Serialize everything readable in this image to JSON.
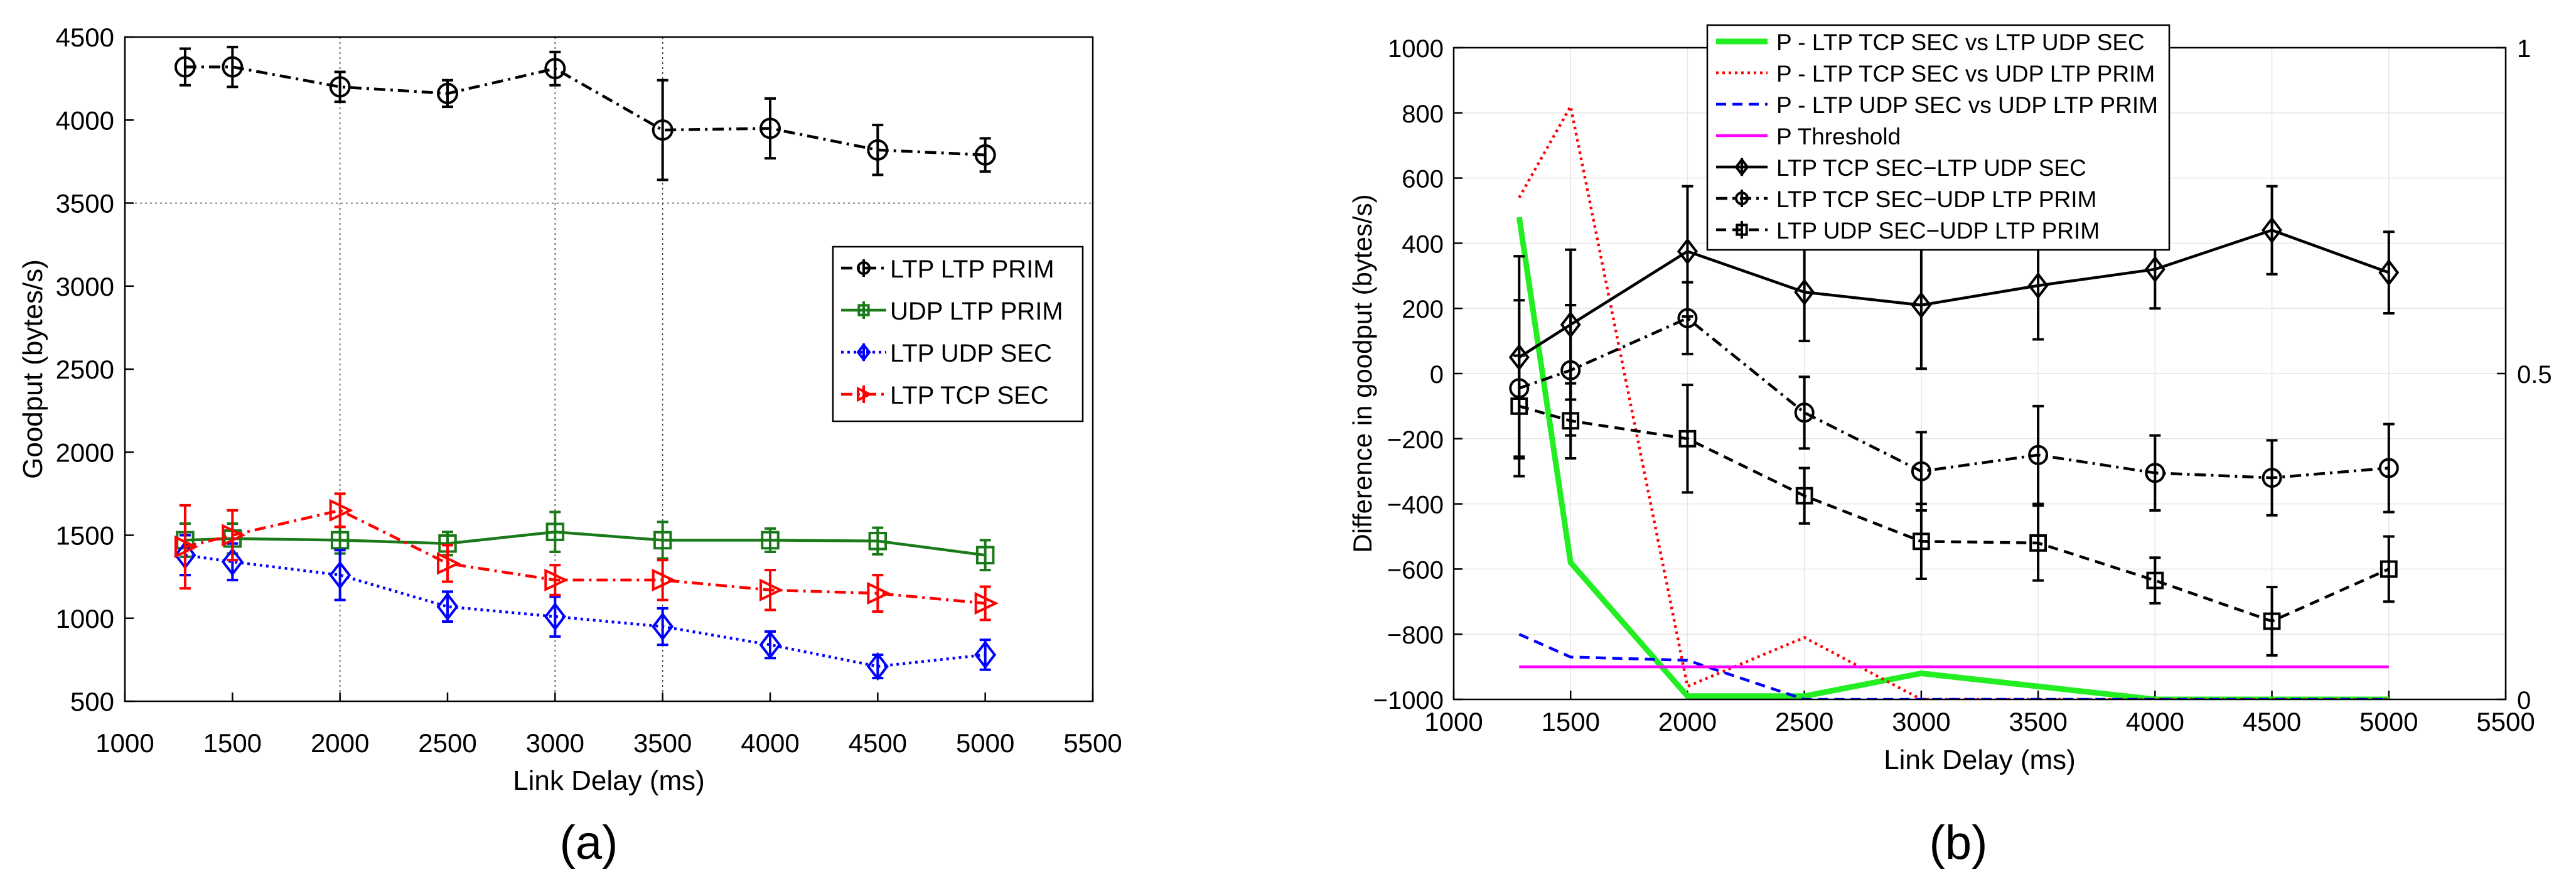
{
  "chart_data": [
    {
      "type": "line",
      "panel_label": "(a)",
      "title": "",
      "xlabel": "Link Delay (ms)",
      "ylabel": "Goodput (bytes/s)",
      "xlim": [
        1000,
        5500
      ],
      "ylim": [
        500,
        4500
      ],
      "xticks": [
        "1000",
        "1500",
        "2000",
        "2500",
        "3000",
        "3500",
        "4000",
        "4500",
        "5000",
        "5500"
      ],
      "yticks": [
        "500",
        "1000",
        "1500",
        "2000",
        "2500",
        "3000",
        "3500",
        "4000",
        "4500"
      ],
      "grid": "dotted at x=2000,3000,3500 and y=3500",
      "legend_position": "right",
      "x": [
        1280,
        1500,
        2000,
        2500,
        3000,
        3500,
        4000,
        4500,
        5000
      ],
      "series": [
        {
          "name": "LTP LTP PRIM",
          "color": "#000000",
          "dash": "dashdot",
          "marker": "circle",
          "values": [
            4320,
            4320,
            4200,
            4160,
            4310,
            3940,
            3950,
            3820,
            3790
          ],
          "errors": [
            110,
            120,
            90,
            80,
            100,
            300,
            180,
            150,
            100
          ]
        },
        {
          "name": "UDP LTP PRIM",
          "color": "#1a7a1a",
          "dash": "solid",
          "marker": "square",
          "values": [
            1470,
            1480,
            1470,
            1450,
            1520,
            1470,
            1470,
            1465,
            1380
          ],
          "errors": [
            100,
            90,
            80,
            70,
            120,
            110,
            70,
            80,
            90
          ]
        },
        {
          "name": "LTP UDP SEC",
          "color": "#0000ff",
          "dash": "dotted",
          "marker": "diamond",
          "values": [
            1380,
            1340,
            1260,
            1070,
            1010,
            950,
            840,
            710,
            780
          ],
          "errors": [
            120,
            110,
            150,
            90,
            120,
            110,
            80,
            70,
            90
          ]
        },
        {
          "name": "LTP TCP SEC",
          "color": "#ff0000",
          "dash": "dashdot",
          "marker": "triangle-right",
          "values": [
            1430,
            1500,
            1650,
            1330,
            1230,
            1230,
            1170,
            1150,
            1090
          ],
          "errors": [
            250,
            150,
            100,
            110,
            90,
            120,
            120,
            110,
            100
          ]
        }
      ]
    },
    {
      "type": "line",
      "panel_label": "(b)",
      "title": "",
      "xlabel": "Link Delay (ms)",
      "ylabel": "Difference in goodput (bytes/s)",
      "y2label": "",
      "xlim": [
        1000,
        5500
      ],
      "ylim": [
        -1000,
        1000
      ],
      "y2lim": [
        0,
        1
      ],
      "xticks": [
        "1000",
        "1500",
        "2000",
        "2500",
        "3000",
        "3500",
        "4000",
        "4500",
        "5000",
        "5500"
      ],
      "yticks": [
        "-1000",
        "-800",
        "-600",
        "-400",
        "-200",
        "0",
        "200",
        "400",
        "600",
        "800",
        "1000"
      ],
      "y2ticks": [
        "0",
        "0.5",
        "1"
      ],
      "grid": "light grid",
      "legend_position": "top",
      "x": [
        1280,
        1500,
        2000,
        2500,
        3000,
        3500,
        4000,
        4500,
        5000
      ],
      "p_series": [
        {
          "name": "P - LTP TCP SEC vs LTP UDP SEC",
          "color": "#22ee22",
          "dash": "solid",
          "values": [
            0.74,
            0.21,
            0.005,
            0.005,
            0.04,
            0.02,
            0.0,
            0.0,
            0.0
          ]
        },
        {
          "name": "P - LTP TCP SEC vs UDP LTP PRIM",
          "color": "#ff0000",
          "dash": "dotted",
          "values": [
            0.77,
            0.91,
            0.02,
            0.095,
            0.0,
            0.0,
            0.0,
            0.0,
            0.0
          ]
        },
        {
          "name": "P - LTP UDP SEC vs UDP LTP PRIM",
          "color": "#0000ff",
          "dash": "dashed",
          "values": [
            0.1,
            0.065,
            0.06,
            0.0,
            0.0,
            0.0,
            0.0,
            0.0,
            0.0
          ]
        },
        {
          "name": "P Threshold",
          "color": "#ff00ff",
          "dash": "solid",
          "values": [
            0.05,
            0.05,
            0.05,
            0.05,
            0.05,
            0.05,
            0.05,
            0.05,
            0.05
          ]
        }
      ],
      "series": [
        {
          "name": "LTP TCP SEC−LTP UDP SEC",
          "color": "#000000",
          "dash": "solid",
          "marker": "diamond",
          "values": [
            50,
            150,
            375,
            250,
            210,
            270,
            320,
            440,
            310
          ],
          "errors": [
            310,
            230,
            200,
            150,
            195,
            165,
            120,
            135,
            125
          ]
        },
        {
          "name": "LTP TCP SEC−UDP LTP PRIM",
          "color": "#000000",
          "dash": "dashdot",
          "marker": "circle",
          "values": [
            -45,
            10,
            170,
            -120,
            -300,
            -250,
            -305,
            -320,
            -290
          ],
          "errors": [
            270,
            200,
            110,
            110,
            120,
            150,
            115,
            115,
            135
          ]
        },
        {
          "name": "LTP UDP SEC−UDP LTP PRIM",
          "color": "#000000",
          "dash": "dashed",
          "marker": "square",
          "values": [
            -100,
            -145,
            -200,
            -375,
            -515,
            -520,
            -635,
            -760,
            -600
          ],
          "errors": [
            155,
            115,
            165,
            85,
            115,
            115,
            70,
            105,
            100
          ]
        }
      ]
    }
  ]
}
